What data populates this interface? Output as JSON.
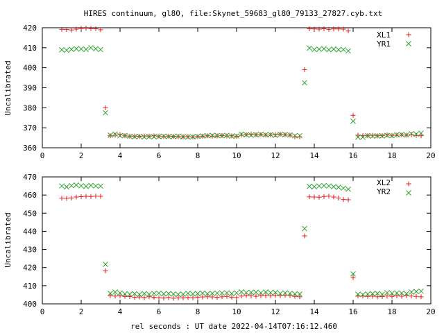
{
  "title": "HIRES continuum, gl80, file:Skynet_59683_gl80_79133_27827.cyb.txt",
  "xlabel": "rel seconds : UT date 2022-04-14T07:16:12.460",
  "chart_data": [
    {
      "type": "scatter",
      "ylabel": "Uncalibrated",
      "xlim": [
        0,
        20
      ],
      "ylim": [
        360,
        420
      ],
      "xticks": [
        "0",
        "2",
        "4",
        "6",
        "8",
        "10",
        "12",
        "14",
        "16",
        "18",
        "20"
      ],
      "yticks": [
        "360",
        "370",
        "380",
        "390",
        "400",
        "410",
        "420"
      ],
      "legend_position": "top-right",
      "x": [
        1.0,
        1.25,
        1.5,
        1.75,
        2.0,
        2.25,
        2.5,
        2.75,
        3.0,
        3.25,
        3.5,
        3.75,
        4.0,
        4.25,
        4.5,
        4.75,
        5.0,
        5.25,
        5.5,
        5.75,
        6.0,
        6.25,
        6.5,
        6.75,
        7.0,
        7.25,
        7.5,
        7.75,
        8.0,
        8.25,
        8.5,
        8.75,
        9.0,
        9.25,
        9.5,
        9.75,
        10.0,
        10.25,
        10.5,
        10.75,
        11.0,
        11.25,
        11.5,
        11.75,
        12.0,
        12.25,
        12.5,
        12.75,
        13.0,
        13.25,
        13.5,
        13.75,
        14.0,
        14.25,
        14.5,
        14.75,
        15.0,
        15.25,
        15.5,
        15.75,
        16.0,
        16.25,
        16.5,
        16.75,
        17.0,
        17.25,
        17.5,
        17.75,
        18.0,
        18.25,
        18.5,
        18.75,
        19.0,
        19.25,
        19.5
      ],
      "series": [
        {
          "name": "XL1",
          "color": "#e41a1c",
          "marker": "plus",
          "values": [
            419.2,
            419.1,
            418.9,
            419.3,
            419.7,
            419.8,
            419.6,
            419.5,
            419.0,
            380.0,
            366.0,
            366.3,
            366.6,
            366.0,
            365.8,
            365.8,
            365.7,
            365.9,
            365.8,
            366.0,
            365.8,
            365.6,
            365.8,
            365.7,
            365.6,
            365.5,
            365.6,
            365.4,
            365.6,
            365.8,
            366.0,
            365.8,
            365.9,
            366.1,
            365.9,
            366.0,
            365.7,
            366.3,
            366.6,
            366.8,
            366.5,
            366.6,
            366.3,
            366.4,
            366.6,
            366.8,
            366.5,
            366.3,
            365.5,
            365.5,
            399.0,
            419.5,
            419.4,
            419.3,
            419.5,
            419.2,
            419.4,
            419.4,
            419.3,
            418.4,
            376.2,
            366.3,
            366.1,
            366.0,
            366.2,
            366.0,
            366.1,
            366.4,
            366.2,
            366.3,
            366.4,
            366.3,
            366.6,
            366.2,
            366.0
          ]
        },
        {
          "name": "YR1",
          "color": "#2ca02c",
          "marker": "cross",
          "values": [
            409.0,
            408.8,
            409.2,
            409.5,
            409.4,
            409.2,
            410.0,
            409.5,
            409.1,
            377.5,
            366.3,
            366.8,
            366.0,
            366.1,
            365.7,
            365.5,
            365.7,
            365.4,
            365.6,
            365.5,
            365.6,
            365.8,
            365.6,
            365.6,
            365.8,
            365.5,
            365.4,
            365.5,
            365.7,
            365.9,
            366.0,
            366.2,
            366.1,
            366.0,
            366.2,
            365.8,
            365.9,
            366.8,
            366.5,
            366.3,
            366.5,
            366.7,
            366.5,
            366.6,
            366.2,
            366.7,
            366.6,
            366.4,
            366.0,
            366.0,
            392.5,
            409.8,
            409.1,
            409.3,
            409.5,
            409.0,
            409.3,
            409.0,
            409.1,
            408.4,
            373.3,
            365.3,
            365.3,
            366.1,
            365.8,
            366.0,
            365.9,
            366.2,
            366.0,
            366.5,
            366.6,
            366.4,
            367.0,
            366.8,
            367.3
          ]
        }
      ]
    },
    {
      "type": "scatter",
      "ylabel": "Uncalibrated",
      "xlim": [
        0,
        20
      ],
      "ylim": [
        400,
        470
      ],
      "xticks": [
        "0",
        "2",
        "4",
        "6",
        "8",
        "10",
        "12",
        "14",
        "16",
        "18",
        "20"
      ],
      "yticks": [
        "400",
        "410",
        "420",
        "430",
        "440",
        "450",
        "460",
        "470"
      ],
      "legend_position": "top-right",
      "x": [
        1.0,
        1.25,
        1.5,
        1.75,
        2.0,
        2.25,
        2.5,
        2.75,
        3.0,
        3.25,
        3.5,
        3.75,
        4.0,
        4.25,
        4.5,
        4.75,
        5.0,
        5.25,
        5.5,
        5.75,
        6.0,
        6.25,
        6.5,
        6.75,
        7.0,
        7.25,
        7.5,
        7.75,
        8.0,
        8.25,
        8.5,
        8.75,
        9.0,
        9.25,
        9.5,
        9.75,
        10.0,
        10.25,
        10.5,
        10.75,
        11.0,
        11.25,
        11.5,
        11.75,
        12.0,
        12.25,
        12.5,
        12.75,
        13.0,
        13.25,
        13.5,
        13.75,
        14.0,
        14.25,
        14.5,
        14.75,
        15.0,
        15.25,
        15.5,
        15.75,
        16.0,
        16.25,
        16.5,
        16.75,
        17.0,
        17.25,
        17.5,
        17.75,
        18.0,
        18.25,
        18.5,
        18.75,
        19.0,
        19.25,
        19.5
      ],
      "series": [
        {
          "name": "XL2",
          "color": "#e41a1c",
          "marker": "plus",
          "values": [
            458.3,
            458.2,
            458.4,
            458.9,
            459.1,
            459.3,
            459.2,
            459.4,
            459.3,
            418.2,
            404.5,
            404.3,
            404.4,
            404.1,
            404.0,
            403.6,
            403.8,
            403.5,
            403.9,
            403.6,
            403.4,
            403.2,
            403.5,
            403.1,
            403.3,
            403.3,
            403.5,
            403.4,
            403.7,
            403.8,
            403.9,
            403.8,
            403.6,
            403.9,
            404.1,
            403.7,
            403.5,
            404.3,
            404.6,
            404.4,
            404.2,
            404.5,
            404.6,
            404.4,
            404.7,
            404.5,
            404.8,
            404.6,
            404.1,
            403.9,
            437.5,
            459.0,
            458.9,
            458.8,
            459.2,
            459.4,
            458.9,
            458.4,
            457.5,
            457.4,
            414.5,
            404.3,
            404.3,
            404.1,
            404.2,
            403.9,
            404.0,
            404.3,
            404.1,
            404.4,
            404.2,
            404.5,
            404.3,
            404.1,
            403.9
          ]
        },
        {
          "name": "YR2",
          "color": "#2ca02c",
          "marker": "cross",
          "values": [
            465.0,
            464.5,
            465.2,
            465.5,
            465.1,
            464.8,
            465.3,
            465.0,
            464.9,
            421.8,
            405.8,
            406.5,
            406.0,
            405.5,
            405.3,
            405.6,
            405.2,
            405.7,
            405.3,
            405.8,
            405.9,
            405.5,
            405.7,
            405.4,
            405.2,
            405.3,
            405.8,
            405.5,
            405.7,
            405.9,
            405.6,
            405.8,
            405.9,
            406.0,
            406.1,
            405.7,
            406.0,
            406.6,
            406.2,
            406.3,
            406.4,
            406.1,
            406.5,
            406.2,
            406.3,
            405.7,
            406.0,
            405.8,
            405.5,
            405.4,
            441.5,
            464.8,
            464.6,
            465.0,
            465.2,
            465.0,
            464.6,
            464.3,
            463.8,
            463.2,
            416.5,
            405.3,
            405.1,
            405.4,
            405.6,
            405.8,
            405.3,
            406.2,
            405.8,
            406.0,
            405.9,
            405.6,
            406.5,
            406.8,
            407.0
          ]
        }
      ]
    }
  ]
}
